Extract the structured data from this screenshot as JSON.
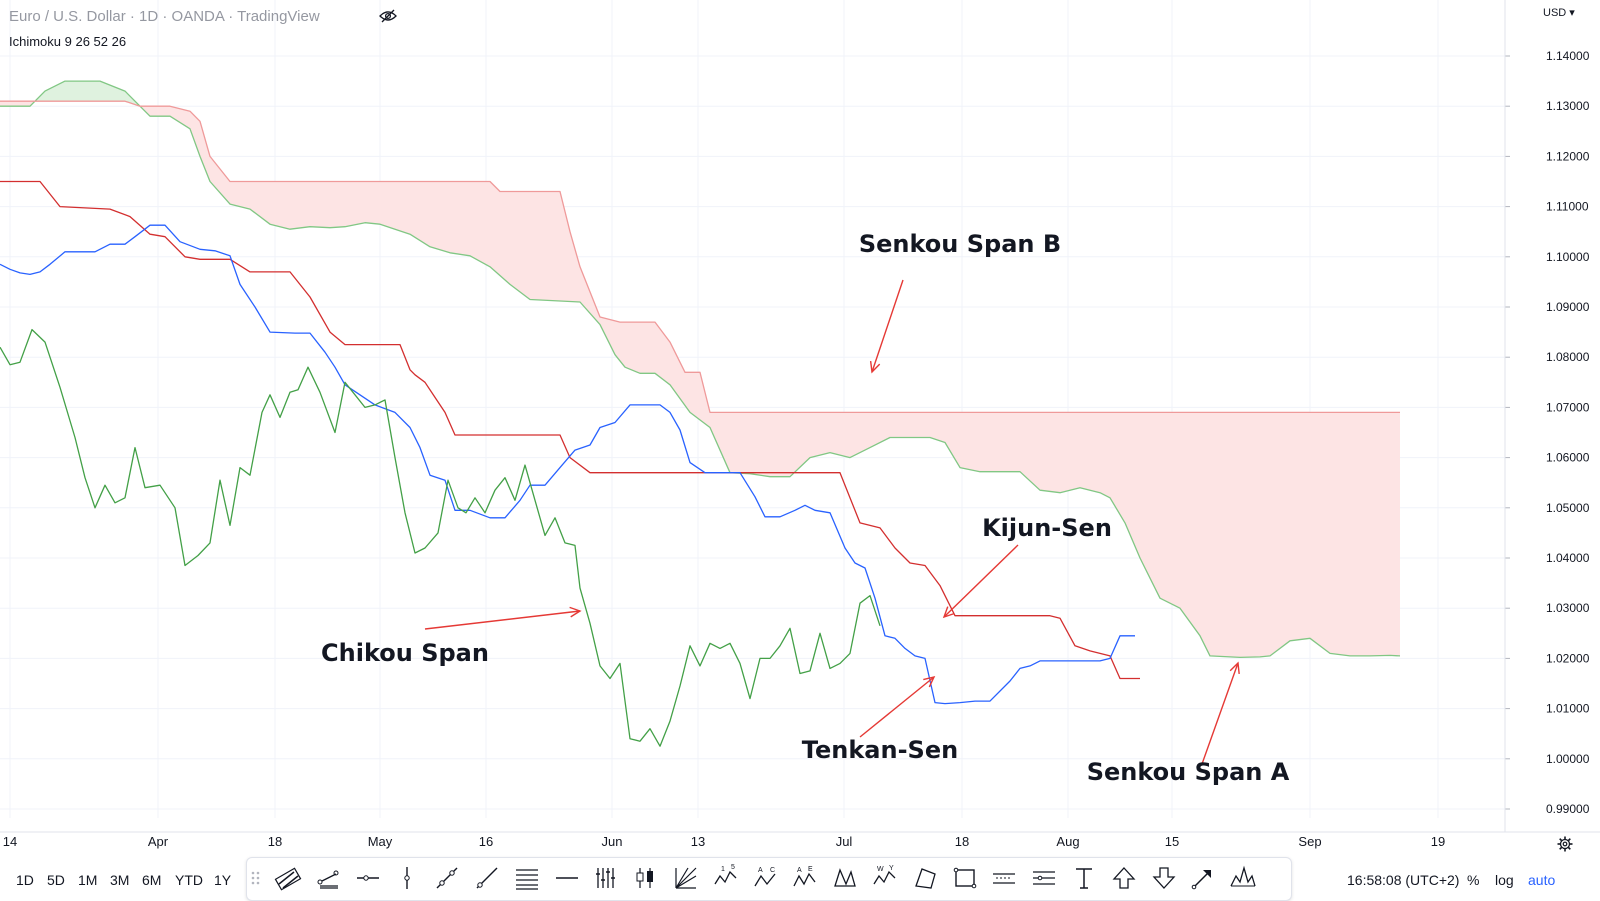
{
  "legend": {
    "title": "Euro / U.S. Dollar · 1D · OANDA · TradingView",
    "indicator": "Ichimoku 9 26 52 26",
    "visibility_icon": "eye-crossed-icon"
  },
  "price_axis": {
    "currency": "USD",
    "labels": [
      "1.14000",
      "1.13000",
      "1.12000",
      "1.11000",
      "1.10000",
      "1.09000",
      "1.08000",
      "1.07000",
      "1.06000",
      "1.05000",
      "1.04000",
      "1.03000",
      "1.02000",
      "1.01000",
      "1.00000",
      "0.99000"
    ]
  },
  "time_axis": {
    "labels": [
      "14",
      "Apr",
      "18",
      "May",
      "16",
      "Jun",
      "13",
      "Jul",
      "18",
      "Aug",
      "15",
      "Sep",
      "19"
    ]
  },
  "chart_data": {
    "type": "line",
    "title": "Euro / U.S. Dollar · 1D · OANDA · TradingView",
    "ylim": [
      0.99,
      1.145
    ],
    "x_range": [
      0,
      1400
    ],
    "colors": {
      "tenkan": "#2962ff",
      "kijun": "#d32f2f",
      "chikou": "#43a047",
      "span_a": "#81c784",
      "span_b": "#ef9a9a",
      "cloud_bearish_fill": "#fde4e4",
      "cloud_bullish_fill": "#dff2df",
      "annotation": "#e53935"
    },
    "series": [
      {
        "name": "Senkou Span A",
        "x": [
          0,
          30,
          45,
          65,
          100,
          125,
          140,
          150,
          170,
          190,
          200,
          210,
          230,
          250,
          270,
          290,
          310,
          330,
          345,
          365,
          380,
          395,
          410,
          430,
          450,
          470,
          490,
          510,
          530,
          560,
          580,
          600,
          615,
          625,
          640,
          655,
          670,
          690,
          710,
          730,
          750,
          770,
          790,
          810,
          830,
          850,
          870,
          890,
          910,
          930,
          945,
          960,
          980,
          1000,
          1020,
          1040,
          1060,
          1080,
          1100,
          1110,
          1125,
          1140,
          1160,
          1180,
          1200,
          1210,
          1240,
          1260,
          1270,
          1290,
          1310,
          1330,
          1350,
          1370,
          1390,
          1400
        ],
        "values": [
          1.13,
          1.13,
          1.133,
          1.135,
          1.135,
          1.133,
          1.13,
          1.128,
          1.128,
          1.1255,
          1.12,
          1.115,
          1.1105,
          1.1095,
          1.1065,
          1.1055,
          1.106,
          1.1058,
          1.106,
          1.1068,
          1.1065,
          1.1055,
          1.1045,
          1.102,
          1.1008,
          1.1002,
          1.098,
          1.0945,
          1.0915,
          1.0912,
          1.091,
          1.0865,
          1.0805,
          1.078,
          1.0768,
          1.0768,
          1.0745,
          1.069,
          1.066,
          1.057,
          1.0568,
          1.0562,
          1.0562,
          1.06,
          1.061,
          1.06,
          1.062,
          1.064,
          1.064,
          1.064,
          1.063,
          1.058,
          1.0572,
          1.0572,
          1.0572,
          1.0535,
          1.053,
          1.054,
          1.053,
          1.052,
          1.047,
          1.04,
          1.032,
          1.03,
          1.0245,
          1.0205,
          1.0202,
          1.0203,
          1.0205,
          1.0235,
          1.024,
          1.021,
          1.0205,
          1.0205,
          1.0206,
          1.0205
        ]
      },
      {
        "name": "Senkou Span B",
        "x": [
          0,
          100,
          125,
          140,
          150,
          170,
          190,
          200,
          210,
          230,
          250,
          300,
          350,
          400,
          450,
          490,
          500,
          520,
          560,
          570,
          580,
          590,
          600,
          620,
          640,
          655,
          670,
          685,
          700,
          710,
          720,
          740,
          780,
          800,
          840,
          880,
          920,
          935,
          945,
          960,
          975,
          1000,
          1020,
          1050,
          1080,
          1090,
          1100,
          1110,
          1125,
          1140,
          1160,
          1180,
          1200,
          1250,
          1300,
          1350,
          1380,
          1400
        ],
        "values": [
          1.131,
          1.131,
          1.131,
          1.13,
          1.13,
          1.13,
          1.129,
          1.127,
          1.12,
          1.115,
          1.115,
          1.115,
          1.115,
          1.115,
          1.115,
          1.115,
          1.113,
          1.113,
          1.113,
          1.105,
          1.098,
          1.093,
          1.088,
          1.087,
          1.087,
          1.087,
          1.083,
          1.077,
          1.077,
          1.069,
          1.069,
          1.069,
          1.069,
          1.069,
          1.069,
          1.069,
          1.069,
          1.069,
          1.069,
          1.069,
          1.069,
          1.069,
          1.069,
          1.069,
          1.069,
          1.069,
          1.069,
          1.069,
          1.069,
          1.069,
          1.069,
          1.069,
          1.069,
          1.069,
          1.069,
          1.069,
          1.069,
          1.069
        ]
      },
      {
        "name": "Kijun-Sen",
        "x": [
          0,
          40,
          60,
          110,
          130,
          150,
          165,
          185,
          200,
          230,
          250,
          290,
          310,
          330,
          345,
          370,
          400,
          410,
          415,
          425,
          435,
          445,
          455,
          520,
          560,
          570,
          590,
          700,
          800,
          840,
          860,
          880,
          895,
          910,
          925,
          940,
          955,
          1050,
          1060,
          1075,
          1090,
          1110,
          1120,
          1140
        ],
        "values": [
          1.115,
          1.115,
          1.11,
          1.1095,
          1.108,
          1.1045,
          1.104,
          1.1,
          1.0995,
          1.0995,
          1.097,
          1.097,
          1.092,
          1.085,
          1.0825,
          1.0825,
          1.0825,
          1.0775,
          1.0765,
          1.075,
          1.072,
          1.069,
          1.0645,
          1.0645,
          1.0645,
          1.06,
          1.057,
          1.057,
          1.057,
          1.057,
          1.047,
          1.046,
          1.042,
          1.039,
          1.0385,
          1.0345,
          1.0285,
          1.0285,
          1.028,
          1.0225,
          1.0215,
          1.0205,
          1.016,
          1.016
        ]
      },
      {
        "name": "Tenkan-Sen",
        "x": [
          0,
          10,
          20,
          30,
          40,
          50,
          65,
          95,
          110,
          125,
          135,
          150,
          165,
          180,
          200,
          215,
          230,
          240,
          255,
          270,
          295,
          310,
          325,
          335,
          345,
          375,
          395,
          410,
          420,
          430,
          445,
          455,
          470,
          490,
          505,
          520,
          530,
          545,
          560,
          575,
          590,
          600,
          615,
          630,
          640,
          660,
          670,
          680,
          690,
          705,
          740,
          755,
          765,
          780,
          795,
          805,
          815,
          830,
          845,
          855,
          865,
          875,
          885,
          895,
          905,
          915,
          925,
          935,
          945,
          960,
          975,
          990,
          1010,
          1020,
          1030,
          1040,
          1060,
          1080,
          1100,
          1110,
          1120,
          1135
        ],
        "values": [
          1.0985,
          1.0975,
          1.0968,
          1.0965,
          1.097,
          1.0985,
          1.101,
          1.101,
          1.1025,
          1.1025,
          1.104,
          1.1063,
          1.1063,
          1.103,
          1.1015,
          1.1012,
          1.1002,
          1.0945,
          1.09,
          1.085,
          1.0848,
          1.0848,
          1.081,
          1.078,
          1.0745,
          1.0705,
          1.069,
          1.066,
          1.062,
          1.0565,
          1.0555,
          1.0495,
          1.0495,
          1.048,
          1.048,
          1.0515,
          1.0545,
          1.0545,
          1.058,
          1.0615,
          1.0625,
          1.066,
          1.067,
          1.0705,
          1.0705,
          1.0705,
          1.069,
          1.0655,
          1.059,
          1.057,
          1.057,
          1.0522,
          1.0482,
          1.0482,
          1.0495,
          1.0505,
          1.0495,
          1.049,
          1.042,
          1.039,
          1.038,
          1.032,
          1.0245,
          1.024,
          1.022,
          1.0205,
          1.02,
          1.0112,
          1.011,
          1.0112,
          1.0115,
          1.0115,
          1.0155,
          1.018,
          1.0185,
          1.0195,
          1.0195,
          1.0195,
          1.0195,
          1.02,
          1.0245,
          1.0245
        ]
      },
      {
        "name": "Chikou Span",
        "x": [
          0,
          10,
          20,
          32,
          45,
          60,
          75,
          85,
          95,
          105,
          115,
          125,
          135,
          145,
          160,
          175,
          185,
          198,
          210,
          220,
          230,
          240,
          250,
          262,
          270,
          280,
          290,
          298,
          308,
          320,
          335,
          345,
          355,
          365,
          375,
          385,
          395,
          405,
          415,
          425,
          438,
          448,
          458,
          466,
          475,
          485,
          495,
          505,
          515,
          525,
          535,
          545,
          555,
          565,
          575,
          580,
          590,
          600,
          610,
          620,
          630,
          640,
          650,
          660,
          670,
          680,
          690,
          700,
          710,
          720,
          730,
          740,
          750,
          760,
          770,
          780,
          790,
          800,
          810,
          820,
          830,
          840,
          850,
          860,
          870,
          880
        ],
        "values": [
          1.082,
          1.0785,
          1.079,
          1.0855,
          1.083,
          1.074,
          1.064,
          1.056,
          1.05,
          1.0545,
          1.051,
          1.052,
          1.062,
          1.054,
          1.0545,
          1.05,
          1.0385,
          1.0405,
          1.043,
          1.0555,
          1.0465,
          1.058,
          1.0565,
          1.069,
          1.0725,
          1.068,
          1.073,
          1.0735,
          1.078,
          1.073,
          1.065,
          1.075,
          1.0725,
          1.07,
          1.0705,
          1.0715,
          1.06,
          1.049,
          1.041,
          1.042,
          1.045,
          1.0555,
          1.05,
          1.049,
          1.052,
          1.049,
          1.0535,
          1.056,
          1.0515,
          1.0585,
          1.0515,
          1.0445,
          1.048,
          1.043,
          1.0425,
          1.034,
          1.027,
          1.0185,
          1.016,
          1.019,
          1.004,
          1.0035,
          1.006,
          1.0025,
          1.0075,
          1.0145,
          1.0225,
          1.0185,
          1.023,
          1.022,
          1.023,
          1.019,
          1.012,
          1.02,
          1.02,
          1.0225,
          1.026,
          1.017,
          1.0175,
          1.025,
          1.018,
          1.019,
          1.021,
          1.031,
          1.0325,
          1.0265
        ]
      }
    ],
    "annotations": [
      {
        "label": "Senkou Span B"
      },
      {
        "label": "Kijun-Sen"
      },
      {
        "label": "Chikou Span"
      },
      {
        "label": "Tenkan-Sen"
      },
      {
        "label": "Senkou Span A"
      }
    ]
  },
  "bottom_bar": {
    "timeframes": [
      "1D",
      "5D",
      "1M",
      "3M",
      "6M",
      "YTD",
      "1Y"
    ],
    "tools": [
      "parallel-channel-icon",
      "trend-angle-icon",
      "horizontal-ray-icon",
      "vertical-line-icon",
      "trend-line-icon",
      "ray-icon",
      "fib-retracement-icon",
      "horizontal-line-icon",
      "pitchfork-icon",
      "long-position-icon",
      "gann-fan-icon",
      "elliott-wave-icon",
      "abcd-pattern-icon",
      "three-drives-icon",
      "xabcd-pattern-icon",
      "cypher-pattern-icon",
      "triangle-pattern-icon",
      "rectangle-icon",
      "date-range-icon",
      "price-range-icon",
      "text-icon",
      "arrow-up-icon",
      "arrow-down-icon",
      "arrow-marker-icon",
      "head-shoulders-icon"
    ],
    "clock": "16:58:08 (UTC+2)",
    "percent_label": "%",
    "log_label": "log",
    "auto_label": "auto",
    "settings_icon": "gear-icon"
  }
}
